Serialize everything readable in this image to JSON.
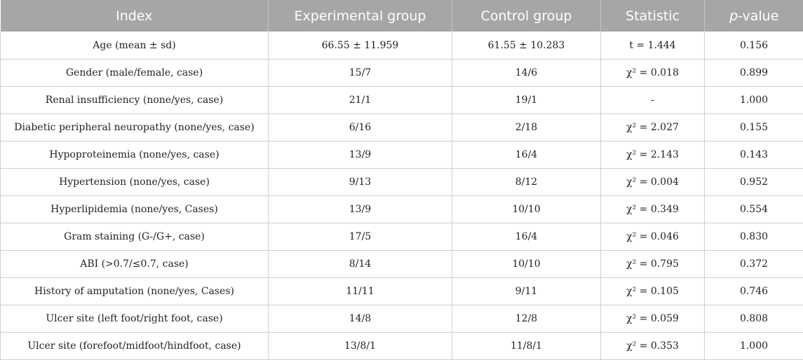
{
  "table": {
    "headers": [
      "Index",
      "Experimental group",
      "Control group",
      "Statistic",
      "value"
    ],
    "header_pvalue_prefix": "p",
    "header_pvalue_suffix": "-value",
    "rows": [
      [
        "Age (mean ± sd)",
        "66.55 ± 11.959",
        "61.55 ± 10.283",
        "t = 1.444",
        "0.156"
      ],
      [
        "Gender (male/female, case)",
        "15/7",
        "14/6",
        "χ² = 0.018",
        "0.899"
      ],
      [
        "Renal insufficiency (none/yes, case)",
        "21/1",
        "19/1",
        "-",
        "1.000"
      ],
      [
        "Diabetic peripheral neuropathy (none/yes, case)",
        "6/16",
        "2/18",
        "χ² = 2.027",
        "0.155"
      ],
      [
        "Hypoproteinemia (none/yes, case)",
        "13/9",
        "16/4",
        "χ² = 2.143",
        "0.143"
      ],
      [
        "Hypertension (none/yes, case)",
        "9/13",
        "8/12",
        "χ² = 0.004",
        "0.952"
      ],
      [
        "Hyperlipidemia (none/yes, Cases)",
        "13/9",
        "10/10",
        "χ² = 0.349",
        "0.554"
      ],
      [
        "Gram staining (G-/G+, case)",
        "17/5",
        "16/4",
        "χ² = 0.046",
        "0.830"
      ],
      [
        "ABI (>0.7/≤0.7, case)",
        "8/14",
        "10/10",
        "χ² = 0.795",
        "0.372"
      ],
      [
        "History of amputation (none/yes, Cases)",
        "11/11",
        "9/11",
        "χ² = 0.105",
        "0.746"
      ],
      [
        "Ulcer site (left foot/right foot, case)",
        "14/8",
        "12/8",
        "χ² = 0.059",
        "0.808"
      ],
      [
        "Ulcer site (forefoot/midfoot/hindfoot, case)",
        "13/8/1",
        "11/8/1",
        "χ² = 0.353",
        "1.000"
      ]
    ]
  }
}
